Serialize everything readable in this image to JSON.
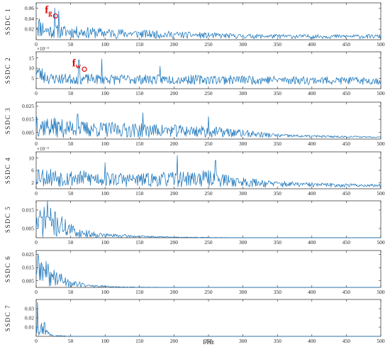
{
  "chart_data": {
    "type": "line",
    "xlabel": "f/Hz",
    "xlim": [
      0,
      500
    ],
    "xticks": [
      0,
      50,
      100,
      150,
      200,
      250,
      300,
      350,
      400,
      450,
      500
    ],
    "line_color": "#1a75bb",
    "annotation_color": "#e00000",
    "panels": [
      {
        "ylabel": "SSDC 1",
        "ylim": [
          0,
          0.07
        ],
        "yticks": [
          {
            "v": 0.02,
            "label": "0.02"
          },
          {
            "v": 0.04,
            "label": "0.04"
          },
          {
            "v": 0.06,
            "label": "0.06"
          }
        ],
        "multiplier": "",
        "annotation": {
          "text": "fg",
          "main": "f",
          "sub": "g",
          "x": 28,
          "y": 0.045
        },
        "envelope": [
          [
            0,
            0.066
          ],
          [
            3,
            0.048
          ],
          [
            15,
            0.03
          ],
          [
            40,
            0.027
          ],
          [
            100,
            0.022
          ],
          [
            200,
            0.016
          ],
          [
            300,
            0.011
          ],
          [
            400,
            0.01
          ],
          [
            500,
            0.01
          ]
        ],
        "spikes": [
          [
            27,
            0.06
          ],
          [
            33,
            0.055
          ]
        ],
        "floor": 0.002,
        "seed": 11
      },
      {
        "ylabel": "SSDC 2",
        "ylim": [
          0,
          0.0018
        ],
        "yticks": [
          {
            "v": 0.0005,
            "label": "5"
          },
          {
            "v": 0.001,
            "label": "10"
          },
          {
            "v": 0.0015,
            "label": "15"
          }
        ],
        "multiplier": "×10⁻³",
        "annotation": {
          "text": "fw",
          "main": "f",
          "sub": "w",
          "x": 70,
          "y": 0.00095
        },
        "envelope": [
          [
            0,
            0.0017
          ],
          [
            3,
            0.0012
          ],
          [
            20,
            0.00075
          ],
          [
            100,
            0.0007
          ],
          [
            200,
            0.00068
          ],
          [
            300,
            0.00065
          ],
          [
            400,
            0.0006
          ],
          [
            500,
            0.00055
          ]
        ],
        "spikes": [
          [
            62,
            0.0014
          ],
          [
            95,
            0.00145
          ],
          [
            180,
            0.0011
          ]
        ],
        "floor": 0.0002,
        "seed": 23
      },
      {
        "ylabel": "SSDC 3",
        "ylim": [
          0,
          0.028
        ],
        "yticks": [
          {
            "v": 0.005,
            "label": "0.005"
          },
          {
            "v": 0.015,
            "label": "0.015"
          },
          {
            "v": 0.025,
            "label": "0.025"
          }
        ],
        "multiplier": "",
        "annotation": null,
        "envelope": [
          [
            0,
            0.026
          ],
          [
            5,
            0.018
          ],
          [
            50,
            0.014
          ],
          [
            150,
            0.012
          ],
          [
            250,
            0.01
          ],
          [
            320,
            0.006
          ],
          [
            350,
            0.004
          ],
          [
            400,
            0.003
          ],
          [
            500,
            0.002
          ]
        ],
        "spikes": [
          [
            155,
            0.02
          ],
          [
            250,
            0.017
          ],
          [
            60,
            0.019
          ]
        ],
        "floor": 0.001,
        "seed": 37
      },
      {
        "ylabel": "SSDC 4",
        "ylim": [
          0,
          0.0012
        ],
        "yticks": [
          {
            "v": 0.0002,
            "label": "2"
          },
          {
            "v": 0.0006,
            "label": "6"
          },
          {
            "v": 0.001,
            "label": "10"
          }
        ],
        "multiplier": "×10⁻³",
        "annotation": null,
        "envelope": [
          [
            0,
            0.0009
          ],
          [
            10,
            0.0007
          ],
          [
            60,
            0.0006
          ],
          [
            150,
            0.0005
          ],
          [
            200,
            0.00055
          ],
          [
            250,
            0.0006
          ],
          [
            290,
            0.0004
          ],
          [
            350,
            0.00025
          ],
          [
            400,
            0.0002
          ],
          [
            500,
            0.00015
          ]
        ],
        "spikes": [
          [
            205,
            0.00108
          ],
          [
            100,
            0.00085
          ],
          [
            260,
            0.00092
          ]
        ],
        "floor": 5e-05,
        "seed": 53
      },
      {
        "ylabel": "SSDC 5",
        "ylim": [
          0,
          0.02
        ],
        "yticks": [
          {
            "v": 0.005,
            "label": "0.005"
          },
          {
            "v": 0.015,
            "label": "0.015"
          }
        ],
        "multiplier": "",
        "annotation": null,
        "envelope": [
          [
            0,
            0.014
          ],
          [
            15,
            0.018
          ],
          [
            40,
            0.011
          ],
          [
            60,
            0.005
          ],
          [
            100,
            0.0025
          ],
          [
            150,
            0.0012
          ],
          [
            200,
            0.0005
          ],
          [
            260,
            0.0002
          ],
          [
            300,
            5e-05
          ],
          [
            500,
            2e-05
          ]
        ],
        "spikes": [
          [
            16,
            0.02
          ]
        ],
        "floor": 0.0,
        "seed": 71
      },
      {
        "ylabel": "SSDC 6",
        "ylim": [
          0,
          0.028
        ],
        "yticks": [
          {
            "v": 0.005,
            "label": "0.005"
          },
          {
            "v": 0.015,
            "label": "0.015"
          },
          {
            "v": 0.025,
            "label": "0.025"
          }
        ],
        "multiplier": "",
        "annotation": null,
        "envelope": [
          [
            0,
            0.028
          ],
          [
            10,
            0.022
          ],
          [
            25,
            0.015
          ],
          [
            50,
            0.006
          ],
          [
            80,
            0.002
          ],
          [
            120,
            0.0006
          ],
          [
            160,
            0.0002
          ],
          [
            200,
            5e-05
          ],
          [
            500,
            2e-05
          ]
        ],
        "spikes": [],
        "floor": 0.0,
        "seed": 89
      },
      {
        "ylabel": "SSDC 7",
        "ylim": [
          0,
          0.04
        ],
        "yticks": [
          {
            "v": 0.01,
            "label": "0.01"
          },
          {
            "v": 0.02,
            "label": "0.02"
          },
          {
            "v": 0.03,
            "label": "0.03"
          }
        ],
        "multiplier": "",
        "annotation": null,
        "envelope": [
          [
            0,
            0.035
          ],
          [
            3,
            0.025
          ],
          [
            10,
            0.012
          ],
          [
            20,
            0.005
          ],
          [
            30,
            0.0015
          ],
          [
            45,
            0.0003
          ],
          [
            70,
            5e-05
          ],
          [
            500,
            2e-05
          ]
        ],
        "spikes": [
          [
            2,
            0.037
          ],
          [
            12,
            0.015
          ]
        ],
        "floor": 0.0,
        "seed": 97
      }
    ]
  }
}
